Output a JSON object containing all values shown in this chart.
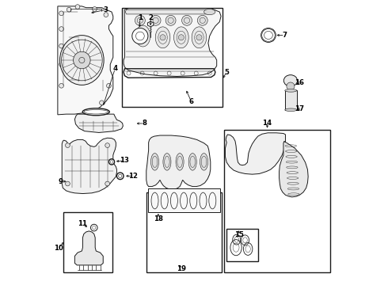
{
  "bg_color": "#ffffff",
  "line_color": "#1a1a1a",
  "boxes": {
    "valve_cover": [
      0.245,
      0.62,
      0.355,
      0.355
    ],
    "oil_filter": [
      0.605,
      0.04,
      0.375,
      0.505
    ],
    "oil_sensor": [
      0.038,
      0.04,
      0.175,
      0.215
    ],
    "gasket_set": [
      0.33,
      0.04,
      0.268,
      0.285
    ]
  },
  "labels": {
    "1": [
      0.31,
      0.938,
      0.308,
      0.898
    ],
    "2": [
      0.347,
      0.938,
      0.347,
      0.904
    ],
    "3": [
      0.19,
      0.968,
      0.13,
      0.955
    ],
    "4": [
      0.222,
      0.76,
      0.178,
      0.623
    ],
    "5": [
      0.615,
      0.748,
      0.598,
      0.72
    ],
    "6": [
      0.49,
      0.645,
      0.47,
      0.69
    ],
    "7": [
      0.82,
      0.878,
      0.783,
      0.878
    ],
    "8": [
      0.325,
      0.567,
      0.29,
      0.567
    ],
    "9": [
      0.03,
      0.363,
      0.058,
      0.363
    ],
    "10": [
      0.022,
      0.128,
      0.048,
      0.155
    ],
    "11": [
      0.108,
      0.215,
      0.13,
      0.196
    ],
    "12": [
      0.286,
      0.382,
      0.252,
      0.382
    ],
    "13": [
      0.255,
      0.436,
      0.218,
      0.433
    ],
    "14": [
      0.758,
      0.568,
      0.758,
      0.543
    ],
    "15": [
      0.658,
      0.174,
      0.658,
      0.198
    ],
    "16": [
      0.872,
      0.71,
      0.854,
      0.706
    ],
    "17": [
      0.872,
      0.618,
      0.856,
      0.618
    ],
    "18": [
      0.374,
      0.232,
      0.374,
      0.258
    ],
    "19": [
      0.455,
      0.056,
      0.443,
      0.075
    ]
  }
}
